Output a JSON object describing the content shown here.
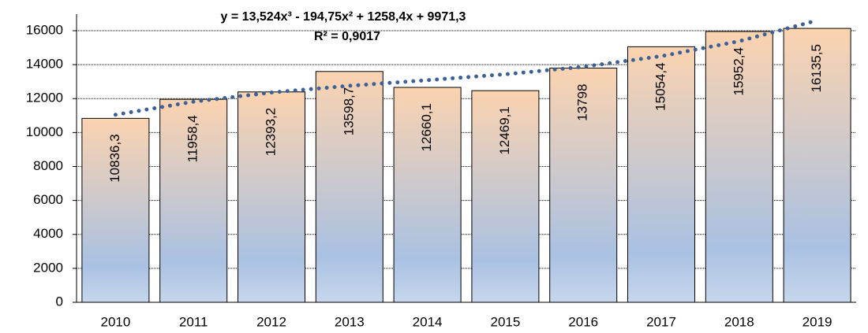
{
  "chart_data": {
    "type": "bar",
    "categories": [
      "2010",
      "2011",
      "2012",
      "2013",
      "2014",
      "2015",
      "2016",
      "2017",
      "2018",
      "2019"
    ],
    "values": [
      10836.3,
      11958.4,
      12393.2,
      13598.7,
      12660.1,
      12469.1,
      13798,
      15054.4,
      15952.4,
      16135.5
    ],
    "value_labels": [
      "10836,3",
      "11958,4",
      "12393,2",
      "13598,7",
      "12660,1",
      "12469,1",
      "13798",
      "15054,4",
      "15952,4",
      "16135,5"
    ],
    "ylim": [
      0,
      16000
    ],
    "yticks": [
      0,
      2000,
      4000,
      6000,
      8000,
      10000,
      12000,
      14000,
      16000
    ],
    "grid": true,
    "gradient": [
      "#fbd3b0",
      "#a9c1e2",
      "#c7d7ec"
    ],
    "trendline": {
      "equation": "y = 13,524x³ - 194,75x² + 1258,4x + 9971,3",
      "r_squared": "R² = 0,9017",
      "color": "#3c6196",
      "values": [
        11048,
        11817,
        12359,
        12754,
        13085,
        13432,
        13876,
        14499,
        15381,
        16604
      ]
    }
  }
}
